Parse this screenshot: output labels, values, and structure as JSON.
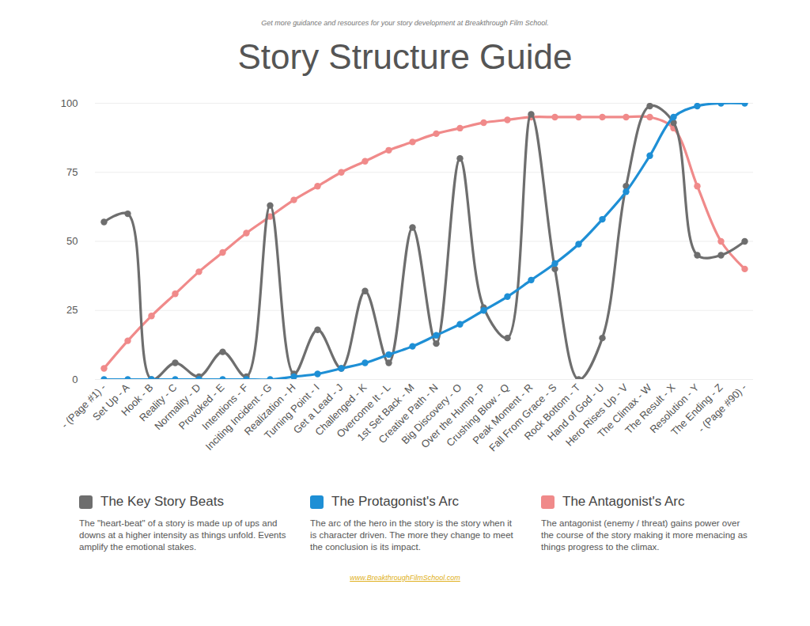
{
  "chart_data": {
    "type": "line",
    "title": "Story Structure Guide",
    "subtitle": "Get more guidance and resources for your story development at Breakthrough Film School.",
    "source": "www.BreakthroughFilmSchool.com",
    "categories": [
      "- (Page #1) -",
      "Set Up - A",
      "Hook - B",
      "Reality - C",
      "Normality - D",
      "Provoked - E",
      "Intentions - F",
      "Inciting Incident - G",
      "Realization - H",
      "Turning Point - I",
      "Get a Lead - J",
      "Challenged - K",
      "Overcome It - L",
      "1st Set Back - M",
      "Creative Path - N",
      "Big Discovery - O",
      "Over the Hump - P",
      "Crushing Blow - Q",
      "Peak Moment - R",
      "Fall From Grace - S",
      "Rock Bottom - T",
      "Hand of God - U",
      "Hero Rises Up - V",
      "The Climax - W",
      "The Result - X",
      "Resolution - Y",
      "The Ending - Z",
      "- (Page #90) -"
    ],
    "series": [
      {
        "name": "The Antagonist's Arc",
        "color": "#f08a8a",
        "marker": "circle",
        "description": "The antagonist (enemy / threat) gains power over the course of the story making it more menacing as things progress to the climax.",
        "values": [
          4,
          14,
          23,
          31,
          39,
          46,
          53,
          59,
          65,
          70,
          75,
          79,
          83,
          86,
          89,
          91,
          93,
          94,
          95,
          95,
          95,
          95,
          95,
          95,
          91,
          70,
          50,
          40
        ]
      },
      {
        "name": "The Key Story Beats",
        "color": "#6e6e6e",
        "marker": "circle",
        "description": "The \"heart-beat\" of a story is made up of ups and downs at a higher intensity as things unfold. Events amplify the emotional stakes.",
        "values": [
          57,
          60,
          0,
          6,
          1,
          10,
          1,
          63,
          2,
          18,
          4,
          32,
          6,
          55,
          13,
          80,
          26,
          15,
          96,
          40,
          0,
          15,
          70,
          99,
          93,
          45,
          45,
          50
        ]
      },
      {
        "name": "The Protagonist's Arc",
        "color": "#1e8fd5",
        "marker": "circle",
        "description": "The arc of the hero in the story is the story when it is character driven. The more they change to meet the conclusion is its impact.",
        "values": [
          0,
          0,
          0,
          0,
          0,
          0,
          0,
          0,
          1,
          2,
          4,
          6,
          9,
          12,
          16,
          20,
          25,
          30,
          36,
          42,
          49,
          58,
          68,
          81,
          95,
          99,
          100,
          100
        ]
      }
    ],
    "legend_order": [
      "The Key Story Beats",
      "The Protagonist's Arc",
      "The Antagonist's Arc"
    ],
    "legend": "bottom",
    "ylim": [
      0,
      100
    ],
    "yticks": [
      0,
      25,
      50,
      75,
      100
    ],
    "grid": true
  }
}
